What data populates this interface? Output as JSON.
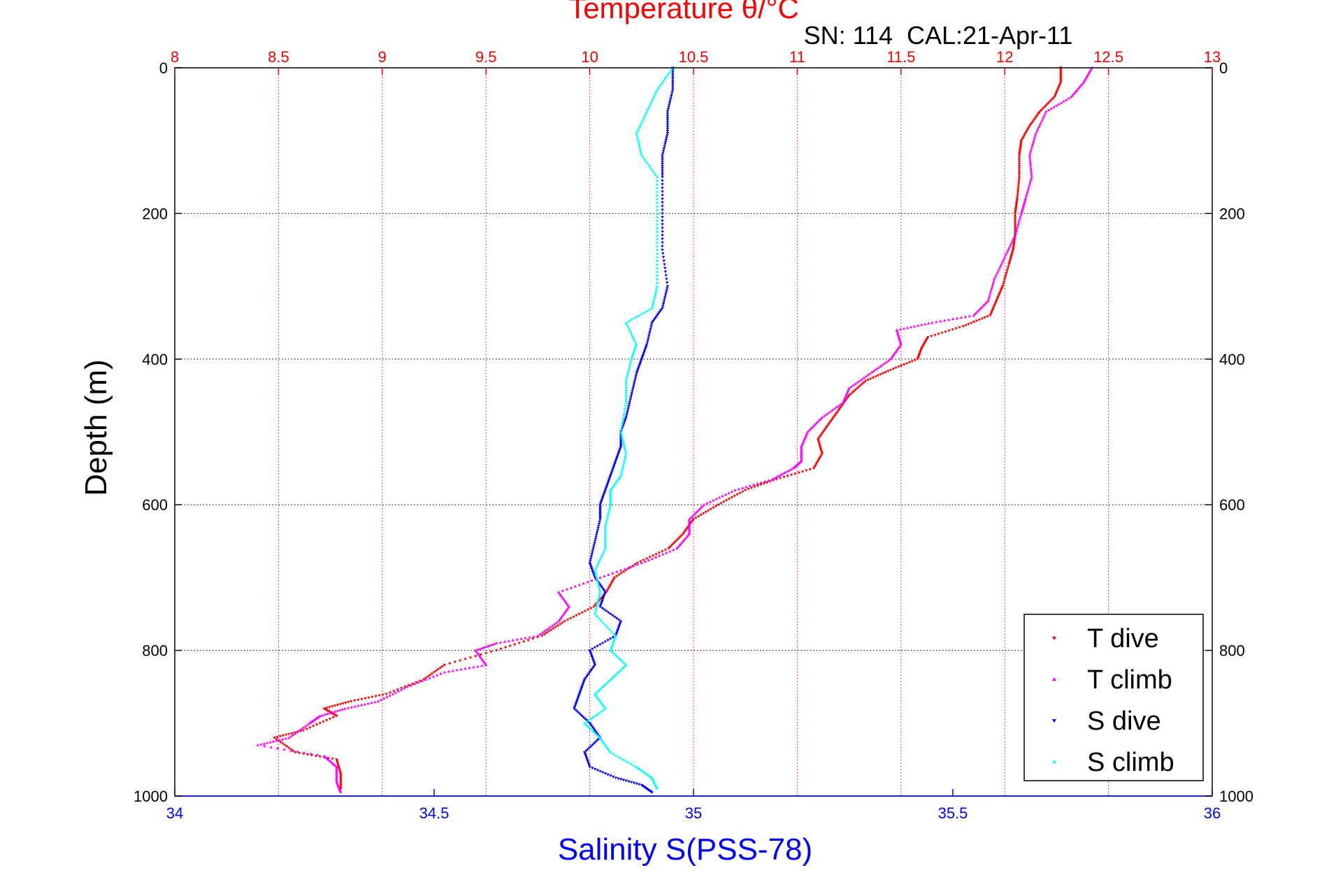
{
  "chart_data": {
    "type": "scatter",
    "title": "Temperature θ/°C",
    "subtitle": "SN: 114  CAL:21-Apr-11",
    "ylabel": "Depth (m)",
    "xlabel_bottom": "Salinity S(PSS-78)",
    "xlabel_top": "Temperature θ/°C",
    "ylim": [
      0,
      1000
    ],
    "y_reversed": true,
    "y_ticks": [
      "0",
      "200",
      "400",
      "600",
      "800",
      "1000"
    ],
    "x_top": {
      "lim": [
        8,
        13
      ],
      "ticks": [
        "8",
        "8.5",
        "9",
        "9.5",
        "10",
        "10.5",
        "11",
        "11.5",
        "12",
        "12.5",
        "13"
      ],
      "color": "#ff0000"
    },
    "x_bottom": {
      "lim": [
        34,
        36
      ],
      "ticks": [
        "34",
        "34.5",
        "35",
        "35.5",
        "36"
      ],
      "color": "#0000ff"
    },
    "grid": true,
    "legend_position": "bottom-right",
    "series": [
      {
        "name": "T dive",
        "axis": "top",
        "color": "#ff0000",
        "points": [
          [
            12.27,
            0
          ],
          [
            12.27,
            20
          ],
          [
            12.24,
            40
          ],
          [
            12.17,
            60
          ],
          [
            12.12,
            80
          ],
          [
            12.08,
            100
          ],
          [
            12.07,
            120
          ],
          [
            12.07,
            150
          ],
          [
            12.06,
            180
          ],
          [
            12.05,
            200
          ],
          [
            12.05,
            230
          ],
          [
            12.04,
            250
          ],
          [
            12.02,
            270
          ],
          [
            11.99,
            300
          ],
          [
            11.96,
            320
          ],
          [
            11.93,
            340
          ],
          [
            11.8,
            355
          ],
          [
            11.63,
            370
          ],
          [
            11.6,
            385
          ],
          [
            11.58,
            400
          ],
          [
            11.45,
            415
          ],
          [
            11.33,
            430
          ],
          [
            11.25,
            450
          ],
          [
            11.2,
            470
          ],
          [
            11.15,
            490
          ],
          [
            11.1,
            510
          ],
          [
            11.12,
            530
          ],
          [
            11.08,
            550
          ],
          [
            10.9,
            565
          ],
          [
            10.75,
            580
          ],
          [
            10.62,
            600
          ],
          [
            10.5,
            620
          ],
          [
            10.45,
            640
          ],
          [
            10.38,
            660
          ],
          [
            10.23,
            680
          ],
          [
            10.12,
            700
          ],
          [
            10.08,
            720
          ],
          [
            10.02,
            740
          ],
          [
            9.88,
            760
          ],
          [
            9.77,
            780
          ],
          [
            9.55,
            800
          ],
          [
            9.3,
            820
          ],
          [
            9.2,
            840
          ],
          [
            9.02,
            860
          ],
          [
            8.85,
            870
          ],
          [
            8.72,
            880
          ],
          [
            8.78,
            890
          ],
          [
            8.62,
            910
          ],
          [
            8.48,
            920
          ],
          [
            8.58,
            940
          ],
          [
            8.78,
            950
          ],
          [
            8.8,
            970
          ],
          [
            8.8,
            990
          ]
        ]
      },
      {
        "name": "T climb",
        "axis": "top",
        "color": "#ff00ff",
        "points": [
          [
            12.42,
            0
          ],
          [
            12.38,
            20
          ],
          [
            12.32,
            40
          ],
          [
            12.2,
            60
          ],
          [
            12.15,
            90
          ],
          [
            12.12,
            120
          ],
          [
            12.13,
            150
          ],
          [
            12.1,
            180
          ],
          [
            12.08,
            200
          ],
          [
            12.05,
            230
          ],
          [
            12.0,
            260
          ],
          [
            11.95,
            290
          ],
          [
            11.92,
            320
          ],
          [
            11.85,
            340
          ],
          [
            11.65,
            350
          ],
          [
            11.48,
            360
          ],
          [
            11.5,
            380
          ],
          [
            11.45,
            400
          ],
          [
            11.35,
            420
          ],
          [
            11.25,
            440
          ],
          [
            11.22,
            460
          ],
          [
            11.12,
            480
          ],
          [
            11.05,
            500
          ],
          [
            11.02,
            520
          ],
          [
            11.02,
            540
          ],
          [
            10.98,
            550
          ],
          [
            10.88,
            565
          ],
          [
            10.7,
            580
          ],
          [
            10.55,
            600
          ],
          [
            10.48,
            620
          ],
          [
            10.48,
            640
          ],
          [
            10.42,
            660
          ],
          [
            10.25,
            680
          ],
          [
            10.05,
            700
          ],
          [
            9.85,
            720
          ],
          [
            9.9,
            740
          ],
          [
            9.85,
            760
          ],
          [
            9.75,
            780
          ],
          [
            9.55,
            790
          ],
          [
            9.45,
            800
          ],
          [
            9.5,
            820
          ],
          [
            9.3,
            830
          ],
          [
            9.12,
            850
          ],
          [
            8.98,
            870
          ],
          [
            8.82,
            880
          ],
          [
            8.7,
            890
          ],
          [
            8.65,
            900
          ],
          [
            8.55,
            920
          ],
          [
            8.4,
            930
          ],
          [
            8.72,
            945
          ],
          [
            8.78,
            960
          ],
          [
            8.78,
            980
          ],
          [
            8.8,
            995
          ]
        ]
      },
      {
        "name": "S dive",
        "axis": "bottom",
        "color": "#0000ff",
        "points": [
          [
            34.96,
            0
          ],
          [
            34.96,
            30
          ],
          [
            34.95,
            60
          ],
          [
            34.95,
            90
          ],
          [
            34.94,
            120
          ],
          [
            34.94,
            150
          ],
          [
            34.94,
            200
          ],
          [
            34.94,
            250
          ],
          [
            34.95,
            300
          ],
          [
            34.94,
            330
          ],
          [
            34.92,
            350
          ],
          [
            34.91,
            380
          ],
          [
            34.9,
            400
          ],
          [
            34.89,
            420
          ],
          [
            34.88,
            450
          ],
          [
            34.87,
            480
          ],
          [
            34.86,
            500
          ],
          [
            34.86,
            520
          ],
          [
            34.85,
            540
          ],
          [
            34.84,
            560
          ],
          [
            34.83,
            580
          ],
          [
            34.82,
            600
          ],
          [
            34.82,
            620
          ],
          [
            34.81,
            650
          ],
          [
            34.8,
            680
          ],
          [
            34.81,
            700
          ],
          [
            34.83,
            720
          ],
          [
            34.82,
            740
          ],
          [
            34.86,
            760
          ],
          [
            34.85,
            780
          ],
          [
            34.8,
            800
          ],
          [
            34.81,
            820
          ],
          [
            34.79,
            840
          ],
          [
            34.78,
            860
          ],
          [
            34.77,
            880
          ],
          [
            34.8,
            900
          ],
          [
            34.82,
            920
          ],
          [
            34.79,
            940
          ],
          [
            34.8,
            960
          ],
          [
            34.85,
            975
          ],
          [
            34.9,
            985
          ],
          [
            34.92,
            995
          ]
        ]
      },
      {
        "name": "S climb",
        "axis": "bottom",
        "color": "#00ffff",
        "points": [
          [
            34.96,
            0
          ],
          [
            34.93,
            30
          ],
          [
            34.91,
            60
          ],
          [
            34.89,
            90
          ],
          [
            34.9,
            120
          ],
          [
            34.93,
            150
          ],
          [
            34.93,
            200
          ],
          [
            34.93,
            250
          ],
          [
            34.93,
            300
          ],
          [
            34.92,
            330
          ],
          [
            34.87,
            350
          ],
          [
            34.89,
            380
          ],
          [
            34.88,
            400
          ],
          [
            34.87,
            430
          ],
          [
            34.87,
            460
          ],
          [
            34.86,
            500
          ],
          [
            34.87,
            530
          ],
          [
            34.86,
            560
          ],
          [
            34.84,
            580
          ],
          [
            34.84,
            600
          ],
          [
            34.83,
            630
          ],
          [
            34.83,
            660
          ],
          [
            34.81,
            690
          ],
          [
            34.82,
            720
          ],
          [
            34.81,
            750
          ],
          [
            34.85,
            780
          ],
          [
            34.84,
            800
          ],
          [
            34.87,
            820
          ],
          [
            34.84,
            840
          ],
          [
            34.81,
            860
          ],
          [
            34.83,
            880
          ],
          [
            34.79,
            900
          ],
          [
            34.82,
            920
          ],
          [
            34.84,
            940
          ],
          [
            34.89,
            960
          ],
          [
            34.92,
            975
          ],
          [
            34.93,
            990
          ]
        ]
      }
    ]
  }
}
